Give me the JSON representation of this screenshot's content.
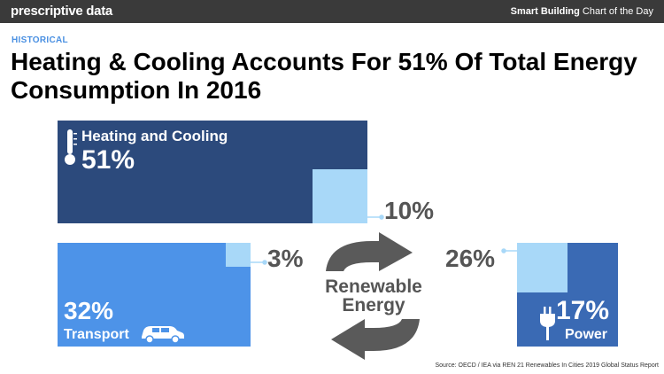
{
  "header": {
    "brand": "prescriptive data",
    "tagline_bold": "Smart Building",
    "tagline_rest": " Chart of the Day"
  },
  "category": "HISTORICAL",
  "title": "Heating & Cooling Accounts For 51% Of Total Energy Consumption In 2016",
  "center_label": {
    "line1": "Renewable",
    "line2": "Energy"
  },
  "source": "Source: OECD / IEA via REN 21 Renewables In Cities 2019 Global Status Report",
  "colors": {
    "heating": "#2c4a7c",
    "transport": "#4d93e8",
    "power": "#3a6ab4",
    "renewable": "#a8d8f8",
    "callout_text": "#555555"
  },
  "icons": [
    "thermometer-icon",
    "car-icon",
    "plug-icon",
    "recycle-arrows-icon"
  ],
  "chart_data": {
    "type": "treemap",
    "title": "Heating & Cooling Accounts For 51% Of Total Energy Consumption In 2016",
    "series": [
      {
        "name": "Heating and Cooling",
        "share_label": "51%",
        "share": 51,
        "renewable_label": "10%",
        "renewable": 10
      },
      {
        "name": "Transport",
        "share_label": "32%",
        "share": 32,
        "renewable_label": "3%",
        "renewable": 3
      },
      {
        "name": "Power",
        "share_label": "17%",
        "share": 17,
        "renewable_label": "26%",
        "renewable": 26
      }
    ]
  }
}
